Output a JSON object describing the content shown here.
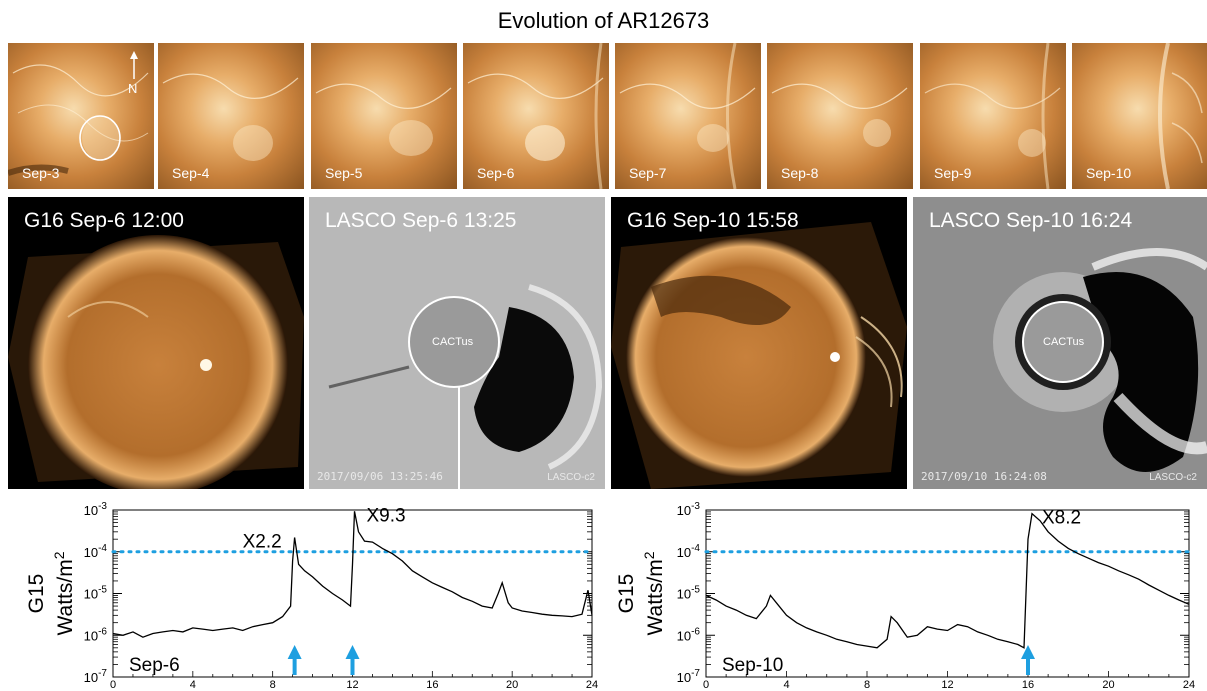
{
  "title": "Evolution of AR12673",
  "thumbnails": [
    {
      "label": "Sep-3",
      "north_label": "N"
    },
    {
      "label": "Sep-4"
    },
    {
      "label": "Sep-5"
    },
    {
      "label": "Sep-6"
    },
    {
      "label": "Sep-7"
    },
    {
      "label": "Sep-8"
    },
    {
      "label": "Sep-9"
    },
    {
      "label": "Sep-10"
    }
  ],
  "panels": [
    {
      "title": "G16 Sep-6 12:00",
      "kind": "suvi"
    },
    {
      "title": "LASCO Sep-6 13:25",
      "kind": "lasco",
      "center_label": "CACTus",
      "timestamp": "2017/09/06 13:25:46",
      "instrument": "LASCO-c2"
    },
    {
      "title": "G16 Sep-10 15:58",
      "kind": "suvi"
    },
    {
      "title": "LASCO Sep-10 16:24",
      "kind": "lasco",
      "center_label": "CACTus",
      "timestamp": "2017/09/10 16:24:08",
      "instrument": "LASCO-c2"
    }
  ],
  "colors": {
    "euv_bright": "#f7dcae",
    "euv_mid": "#c8813c",
    "euv_dark": "#6b3c12",
    "threshold_line": "#1e9fe0",
    "arrow": "#1e9fe0",
    "curve": "#000000"
  },
  "chart_data": [
    {
      "type": "line",
      "ylabel_line1": "G15",
      "ylabel_line2": "Watts/m",
      "ylabel_sup": "2",
      "scale": "log",
      "ylim": [
        1e-07,
        0.001
      ],
      "xlim": [
        0,
        24
      ],
      "x_ticks": [
        0,
        4,
        8,
        12,
        16,
        20,
        24
      ],
      "y_ticks": [
        {
          "base": "10",
          "exp": "-3"
        },
        {
          "base": "10",
          "exp": "-4"
        },
        {
          "base": "10",
          "exp": "-5"
        },
        {
          "base": "10",
          "exp": "-6"
        },
        {
          "base": "10",
          "exp": "-7"
        }
      ],
      "date_label": "Sep-6",
      "threshold": 0.0001,
      "annotations": [
        {
          "text": "X2.2",
          "x": 9.1,
          "y": 0.00022
        },
        {
          "text": "X9.3",
          "x": 12.0,
          "y": 0.00093
        }
      ],
      "arrows": [
        9.1,
        12.0
      ],
      "series": [
        {
          "x": [
            0,
            0.5,
            1,
            1.5,
            2,
            2.5,
            3,
            3.5,
            4,
            4.5,
            5,
            5.5,
            6,
            6.5,
            7,
            7.5,
            8,
            8.5,
            8.9,
            9.0,
            9.1,
            9.3,
            9.6,
            10,
            10.5,
            11,
            11.5,
            11.9,
            12.0,
            12.1,
            12.3,
            12.6,
            13,
            13.5,
            14,
            14.5,
            15,
            15.5,
            16,
            16.5,
            17,
            17.5,
            18,
            18.5,
            19,
            19.3,
            19.5,
            19.8,
            20,
            20.5,
            21,
            21.5,
            22,
            22.5,
            23,
            23.5,
            23.8,
            24
          ],
          "y": [
            1.1e-06,
            1e-06,
            1.2e-06,
            9e-07,
            1.1e-06,
            1.2e-06,
            1.3e-06,
            1.2e-06,
            1.5e-06,
            1.4e-06,
            1.3e-06,
            1.4e-06,
            1.5e-06,
            1.3e-06,
            1.6e-06,
            1.8e-06,
            2e-06,
            2.8e-06,
            5e-06,
            6e-05,
            0.00022,
            5e-05,
            3.5e-05,
            2.5e-05,
            1.5e-05,
            1e-05,
            7e-06,
            5e-06,
            5e-05,
            0.00093,
            0.0003,
            0.00018,
            0.00017,
            0.00012,
            9e-05,
            6e-05,
            3.5e-05,
            2.5e-05,
            1.8e-05,
            1.4e-05,
            1.1e-05,
            8e-06,
            6.5e-06,
            5e-06,
            4.5e-06,
            1e-05,
            1.8e-05,
            6e-06,
            4.5e-06,
            3.8e-06,
            3.5e-06,
            3.2e-06,
            3e-06,
            2.9e-06,
            2.8e-06,
            3.2e-06,
            1.2e-05,
            3e-06
          ]
        }
      ]
    },
    {
      "type": "line",
      "ylabel_line1": "G15",
      "ylabel_line2": "Watts/m",
      "ylabel_sup": "2",
      "scale": "log",
      "ylim": [
        1e-07,
        0.001
      ],
      "xlim": [
        0,
        24
      ],
      "x_ticks": [
        0,
        4,
        8,
        12,
        16,
        20,
        24
      ],
      "y_ticks": [
        {
          "base": "10",
          "exp": "-3"
        },
        {
          "base": "10",
          "exp": "-4"
        },
        {
          "base": "10",
          "exp": "-5"
        },
        {
          "base": "10",
          "exp": "-6"
        },
        {
          "base": "10",
          "exp": "-7"
        }
      ],
      "date_label": "Sep-10",
      "threshold": 0.0001,
      "annotations": [
        {
          "text": "X8.2",
          "x": 16.0,
          "y": 0.00082
        }
      ],
      "arrows": [
        16.0
      ],
      "series": [
        {
          "x": [
            0,
            0.5,
            1,
            1.5,
            2,
            2.5,
            3,
            3.2,
            3.5,
            4,
            4.5,
            5,
            5.5,
            6,
            6.5,
            7,
            7.5,
            8,
            8.5,
            9,
            9.2,
            9.5,
            10,
            10.5,
            11,
            11.5,
            12,
            12.5,
            13,
            13.5,
            14,
            14.5,
            15,
            15.5,
            15.8,
            16.0,
            16.2,
            16.6,
            17,
            17.5,
            18,
            18.5,
            19,
            19.5,
            20,
            20.5,
            21,
            21.5,
            22,
            22.5,
            23,
            23.5,
            24
          ],
          "y": [
            9e-06,
            7e-06,
            5e-06,
            4e-06,
            3e-06,
            2.5e-06,
            5e-06,
            9e-06,
            6e-06,
            3e-06,
            2e-06,
            1.5e-06,
            1.2e-06,
            1e-06,
            8e-07,
            7e-07,
            6e-07,
            5.5e-07,
            5e-07,
            8e-07,
            2.8e-06,
            2e-06,
            9e-07,
            1e-06,
            1.6e-06,
            1.4e-06,
            1.3e-06,
            1.8e-06,
            1.6e-06,
            1.2e-06,
            1e-06,
            8e-07,
            7e-07,
            6e-07,
            5e-07,
            0.0002,
            0.00082,
            0.00055,
            0.0003,
            0.00018,
            0.00012,
            9e-05,
            7e-05,
            5.5e-05,
            4.5e-05,
            3.5e-05,
            2.8e-05,
            2.2e-05,
            1.6e-05,
            1.2e-05,
            9e-06,
            7e-06,
            5.5e-06
          ]
        }
      ]
    }
  ]
}
